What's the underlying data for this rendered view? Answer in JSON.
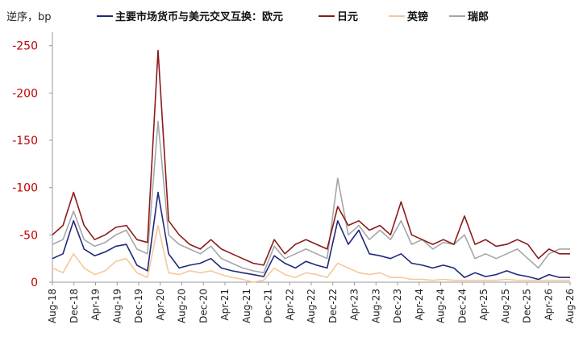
{
  "chart_data": {
    "type": "line",
    "title": "",
    "unit_label": "逆序，bp",
    "y_axis": {
      "inverted": true,
      "ylim": [
        0,
        -260
      ],
      "ticks": [
        0,
        -50,
        -100,
        -150,
        -200,
        -250
      ],
      "tick_color": "#c00000"
    },
    "x_axis": {
      "tick_labels": [
        "Aug-18",
        "Dec-18",
        "Apr-19",
        "Aug-19",
        "Dec-19",
        "Apr-20",
        "Aug-20",
        "Dec-20",
        "Apr-21",
        "Aug-21",
        "Dec-21",
        "Apr-22",
        "Aug-22",
        "Dec-22",
        "Apr-23",
        "Aug-23",
        "Dec-23",
        "Apr-24",
        "Aug-24",
        "Dec-24",
        "Apr-25",
        "Aug-25",
        "Dec-25",
        "Apr-26",
        "Aug-26"
      ],
      "label_rotation": -90
    },
    "legend": {
      "position": "top"
    },
    "grid": false,
    "x": [
      "Aug-18",
      "Oct-18",
      "Dec-18",
      "Feb-19",
      "Apr-19",
      "Jun-19",
      "Aug-19",
      "Oct-19",
      "Dec-19",
      "Feb-20",
      "Mar-20",
      "Apr-20",
      "Jun-20",
      "Aug-20",
      "Oct-20",
      "Dec-20",
      "Feb-21",
      "Apr-21",
      "Jun-21",
      "Aug-21",
      "Oct-21",
      "Dec-21",
      "Feb-22",
      "Apr-22",
      "Jun-22",
      "Aug-22",
      "Oct-22",
      "Dec-22",
      "Feb-23",
      "Apr-23",
      "Jun-23",
      "Aug-23",
      "Oct-23",
      "Dec-23",
      "Feb-24",
      "Apr-24",
      "Jun-24",
      "Aug-24",
      "Oct-24",
      "Dec-24",
      "Feb-25",
      "Apr-25",
      "Jun-25",
      "Aug-25",
      "Oct-25",
      "Dec-25",
      "Feb-26",
      "Apr-26",
      "Jun-26",
      "Aug-26"
    ],
    "series": [
      {
        "name": "主要市场货币与美元交叉互换：欧元",
        "color": "#1f2a78",
        "values": [
          -25,
          -30,
          -65,
          -35,
          -28,
          -32,
          -38,
          -40,
          -18,
          -12,
          -95,
          -30,
          -15,
          -18,
          -20,
          -25,
          -15,
          -12,
          -10,
          -8,
          -6,
          -28,
          -20,
          -15,
          -22,
          -18,
          -15,
          -65,
          -40,
          -55,
          -30,
          -28,
          -25,
          -30,
          -20,
          -18,
          -15,
          -18,
          -15,
          -5,
          -10,
          -6,
          -8,
          -12,
          -8,
          -6,
          -3,
          -8,
          -5,
          -5
        ]
      },
      {
        "name": "日元",
        "color": "#8b1a1a",
        "values": [
          -50,
          -60,
          -95,
          -60,
          -45,
          -50,
          -58,
          -60,
          -45,
          -42,
          -245,
          -65,
          -50,
          -40,
          -35,
          -45,
          -35,
          -30,
          -25,
          -20,
          -18,
          -45,
          -30,
          -40,
          -45,
          -40,
          -35,
          -80,
          -60,
          -65,
          -55,
          -60,
          -50,
          -85,
          -50,
          -45,
          -40,
          -45,
          -40,
          -70,
          -40,
          -45,
          -38,
          -40,
          -45,
          -40,
          -25,
          -35,
          -30,
          -30
        ]
      },
      {
        "name": "英镑",
        "color": "#f5c89a",
        "values": [
          -15,
          -10,
          -30,
          -15,
          -8,
          -12,
          -22,
          -25,
          -10,
          -5,
          -60,
          -10,
          -8,
          -12,
          -10,
          -12,
          -8,
          -5,
          -3,
          0,
          -2,
          -15,
          -8,
          -5,
          -10,
          -8,
          -5,
          -20,
          -15,
          -10,
          -8,
          -10,
          -5,
          -5,
          -3,
          -3,
          -2,
          -3,
          -2,
          -2,
          -2,
          -2,
          -2,
          -3,
          -2,
          -2,
          -2,
          -2,
          -2,
          -2
        ]
      },
      {
        "name": "瑞郎",
        "color": "#a6a6a6",
        "values": [
          -40,
          -45,
          -75,
          -45,
          -38,
          -42,
          -50,
          -55,
          -35,
          -30,
          -170,
          -50,
          -40,
          -35,
          -30,
          -38,
          -25,
          -20,
          -15,
          -12,
          -10,
          -38,
          -25,
          -30,
          -35,
          -30,
          -25,
          -110,
          -50,
          -60,
          -45,
          -55,
          -45,
          -65,
          -40,
          -45,
          -35,
          -42,
          -40,
          -50,
          -25,
          -30,
          -25,
          -30,
          -35,
          -25,
          -15,
          -30,
          -35,
          -35
        ]
      }
    ]
  }
}
